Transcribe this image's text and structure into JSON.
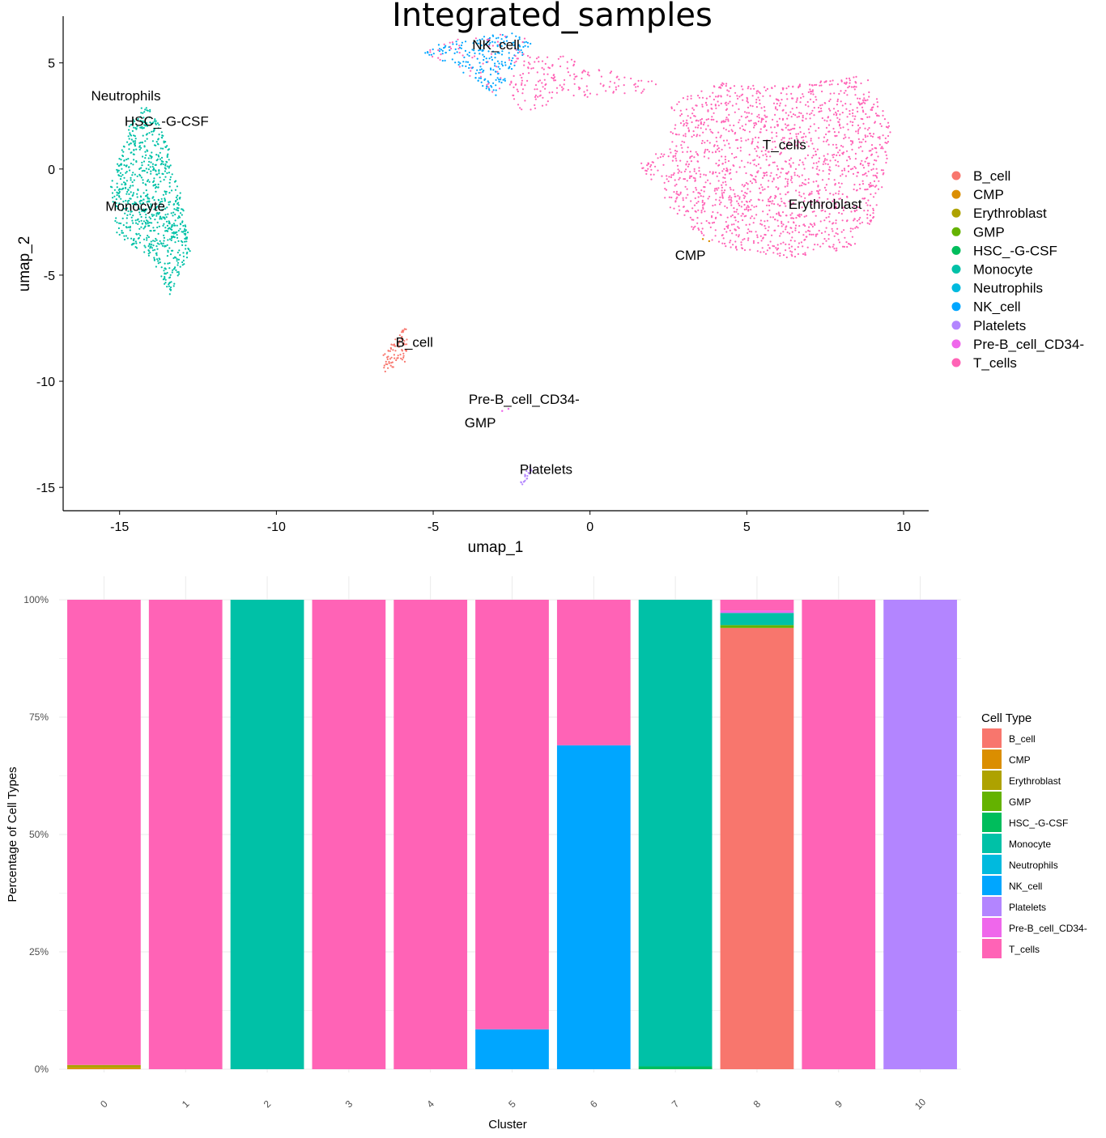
{
  "colors": {
    "B_cell": "#F8766D",
    "CMP": "#DB8E00",
    "Erythroblast": "#AEA200",
    "GMP": "#64B200",
    "HSC_-G-CSF": "#00BD5C",
    "Monocyte": "#00C1A7",
    "Neutrophils": "#00BADE",
    "NK_cell": "#00A6FF",
    "Platelets": "#B385FF",
    "Pre-B_cell_CD34-": "#EF67EB",
    "T_cells": "#FF63B6"
  },
  "chart_data": [
    {
      "type": "scatter",
      "title": "Integrated_samples",
      "xlabel": "umap_1",
      "ylabel": "umap_2",
      "xlim": [
        -16.8,
        10.8
      ],
      "ylim": [
        -16.1,
        7.2
      ],
      "xticks": [
        "-15",
        "-10",
        "-5",
        "0",
        "5",
        "10"
      ],
      "yticks": [
        "5",
        "0",
        "-5",
        "-10",
        "-15"
      ],
      "legend": {
        "position": "right",
        "entries": [
          "B_cell",
          "CMP",
          "Erythroblast",
          "GMP",
          "HSC_-G-CSF",
          "Monocyte",
          "Neutrophils",
          "NK_cell",
          "Platelets",
          "Pre-B_cell_CD34-",
          "T_cells"
        ]
      },
      "cluster_labels": [
        {
          "text": "NK_cell",
          "x": -3.0,
          "y": 5.8
        },
        {
          "text": "Neutrophils",
          "x": -14.8,
          "y": 3.4
        },
        {
          "text": "HSC_-G-CSF",
          "x": -13.5,
          "y": 2.2
        },
        {
          "text": "T_cells",
          "x": 6.2,
          "y": 1.1
        },
        {
          "text": "Erythroblast",
          "x": 7.5,
          "y": -1.7
        },
        {
          "text": "Monocyte",
          "x": -14.5,
          "y": -1.8
        },
        {
          "text": "CMP",
          "x": 3.2,
          "y": -4.1
        },
        {
          "text": "B_cell",
          "x": -5.6,
          "y": -8.2
        },
        {
          "text": "Pre-B_cell_CD34-",
          "x": -2.1,
          "y": -10.9
        },
        {
          "text": "GMP",
          "x": -3.5,
          "y": -12.0
        },
        {
          "text": "Platelets",
          "x": -1.4,
          "y": -14.2
        }
      ],
      "clusters": [
        {
          "type": "Monocyte",
          "shape": "poly",
          "n": 800,
          "poly": [
            [
              -14.2,
              3.2
            ],
            [
              -13.5,
              1.5
            ],
            [
              -13.0,
              -1.5
            ],
            [
              -12.7,
              -3.8
            ],
            [
              -13.4,
              -5.9
            ],
            [
              -14.0,
              -4.2
            ],
            [
              -15.1,
              -3.1
            ],
            [
              -15.3,
              -0.8
            ],
            [
              -14.7,
              2.0
            ]
          ]
        },
        {
          "type": "NK_cell",
          "shape": "poly",
          "n": 260,
          "poly": [
            [
              -5.3,
              5.7
            ],
            [
              -4.0,
              6.2
            ],
            [
              -2.5,
              6.4
            ],
            [
              -1.8,
              6.0
            ],
            [
              -2.5,
              4.6
            ],
            [
              -3.0,
              3.4
            ],
            [
              -4.0,
              4.5
            ],
            [
              -5.3,
              5.5
            ]
          ]
        },
        {
          "type": "T_cells",
          "shape": "poly",
          "n": 180,
          "poly": [
            [
              -2.4,
              5.6
            ],
            [
              -0.7,
              5.4
            ],
            [
              0.3,
              4.8
            ],
            [
              1.4,
              4.3
            ],
            [
              2.2,
              4.1
            ],
            [
              1.8,
              3.6
            ],
            [
              0.8,
              3.5
            ],
            [
              -0.8,
              3.3
            ],
            [
              -2.2,
              2.6
            ],
            [
              -2.6,
              3.8
            ]
          ]
        },
        {
          "type": "T_cells",
          "shape": "poly",
          "n": 1700,
          "poly": [
            [
              2.6,
              3.2
            ],
            [
              4.0,
              4.1
            ],
            [
              6.0,
              3.9
            ],
            [
              7.5,
              4.2
            ],
            [
              8.8,
              4.4
            ],
            [
              9.6,
              2.0
            ],
            [
              9.4,
              -0.5
            ],
            [
              9.0,
              -2.5
            ],
            [
              8.4,
              -3.8
            ],
            [
              6.5,
              -4.2
            ],
            [
              4.6,
              -3.9
            ],
            [
              3.3,
              -2.9
            ],
            [
              2.6,
              -1.9
            ],
            [
              1.4,
              0.5
            ],
            [
              1.5,
              0.3
            ],
            [
              2.5,
              1.0
            ]
          ]
        },
        {
          "type": "B_cell",
          "shape": "poly",
          "n": 75,
          "poly": [
            [
              -6.6,
              -8.8
            ],
            [
              -6.1,
              -7.8
            ],
            [
              -5.9,
              -7.3
            ],
            [
              -5.8,
              -8.0
            ],
            [
              -5.9,
              -9.2
            ],
            [
              -6.6,
              -9.6
            ]
          ]
        },
        {
          "type": "Platelets",
          "shape": "poly",
          "n": 22,
          "poly": [
            [
              -2.2,
              -15.0
            ],
            [
              -2.0,
              -14.6
            ],
            [
              -1.8,
              -14.1
            ],
            [
              -1.9,
              -13.9
            ],
            [
              -2.1,
              -14.4
            ],
            [
              -2.3,
              -14.9
            ]
          ]
        }
      ]
    },
    {
      "type": "bar",
      "stacked": true,
      "xlabel": "Cluster",
      "ylabel": "Percentage of Cell Types",
      "ylim": [
        0,
        100
      ],
      "yticks": [
        "0%",
        "25%",
        "50%",
        "75%",
        "100%"
      ],
      "categories": [
        "0",
        "1",
        "2",
        "3",
        "4",
        "5",
        "6",
        "7",
        "8",
        "9",
        "10"
      ],
      "legend": {
        "title": "Cell Type",
        "position": "right",
        "entries": [
          "B_cell",
          "CMP",
          "Erythroblast",
          "GMP",
          "HSC_-G-CSF",
          "Monocyte",
          "Neutrophils",
          "NK_cell",
          "Platelets",
          "Pre-B_cell_CD34-",
          "T_cells"
        ]
      },
      "series": [
        {
          "name": "B_cell",
          "values": [
            0,
            0,
            0,
            0,
            0,
            0,
            0,
            0,
            94.0,
            0,
            0
          ]
        },
        {
          "name": "CMP",
          "values": [
            0.3,
            0,
            0,
            0,
            0,
            0,
            0,
            0,
            0,
            0,
            0
          ]
        },
        {
          "name": "Erythroblast",
          "values": [
            0.6,
            0,
            0,
            0,
            0,
            0,
            0,
            0,
            0,
            0,
            0
          ]
        },
        {
          "name": "GMP",
          "values": [
            0,
            0,
            0,
            0,
            0,
            0,
            0,
            0,
            0.6,
            0,
            0
          ]
        },
        {
          "name": "HSC_-G-CSF",
          "values": [
            0,
            0,
            0,
            0,
            0,
            0,
            0,
            0.6,
            0,
            0,
            0
          ]
        },
        {
          "name": "Monocyte",
          "values": [
            0,
            0,
            100,
            0,
            0,
            0,
            0,
            99.4,
            2.6,
            0,
            0
          ]
        },
        {
          "name": "Neutrophils",
          "values": [
            0,
            0,
            0,
            0,
            0,
            0,
            0,
            0,
            0,
            0,
            0
          ]
        },
        {
          "name": "NK_cell",
          "values": [
            0,
            0,
            0,
            0,
            0,
            8.5,
            69,
            0,
            0,
            0,
            0
          ]
        },
        {
          "name": "Platelets",
          "values": [
            0,
            0,
            0,
            0,
            0,
            0,
            0,
            0,
            0,
            0,
            100
          ]
        },
        {
          "name": "Pre-B_cell_CD34-",
          "values": [
            0,
            0,
            0,
            0,
            0,
            0,
            0,
            0,
            0.5,
            0,
            0
          ]
        },
        {
          "name": "T_cells",
          "values": [
            99.1,
            100,
            0,
            100,
            100,
            91.5,
            31,
            0,
            2.3,
            100,
            0
          ]
        }
      ]
    }
  ]
}
